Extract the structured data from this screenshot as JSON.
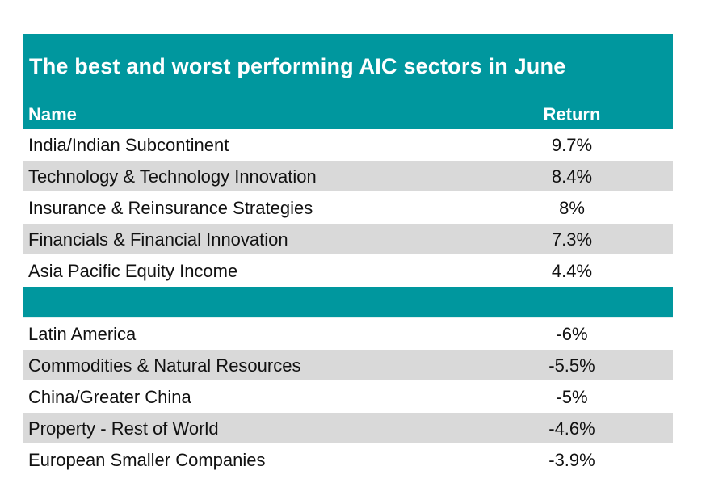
{
  "chart_data": {
    "type": "table",
    "title": "The best and worst performing AIC sectors in June",
    "columns": [
      "Name",
      "Return"
    ],
    "best": [
      {
        "name": "India/Indian Subcontinent",
        "return": "9.7%"
      },
      {
        "name": "Technology & Technology Innovation",
        "return": "8.4%"
      },
      {
        "name": "Insurance & Reinsurance Strategies",
        "return": "8%"
      },
      {
        "name": "Financials & Financial Innovation",
        "return": "7.3%"
      },
      {
        "name": "Asia Pacific Equity Income",
        "return": "4.4%"
      }
    ],
    "worst": [
      {
        "name": "Latin America",
        "return": "-6%"
      },
      {
        "name": "Commodities & Natural Resources",
        "return": "-5.5%"
      },
      {
        "name": "China/Greater China",
        "return": "-5%"
      },
      {
        "name": "Property - Rest of World",
        "return": "-4.6%"
      },
      {
        "name": "European Smaller Companies",
        "return": "-3.9%"
      }
    ]
  },
  "colors": {
    "accent": "#00979e",
    "alt_row": "#d9d9d9"
  }
}
